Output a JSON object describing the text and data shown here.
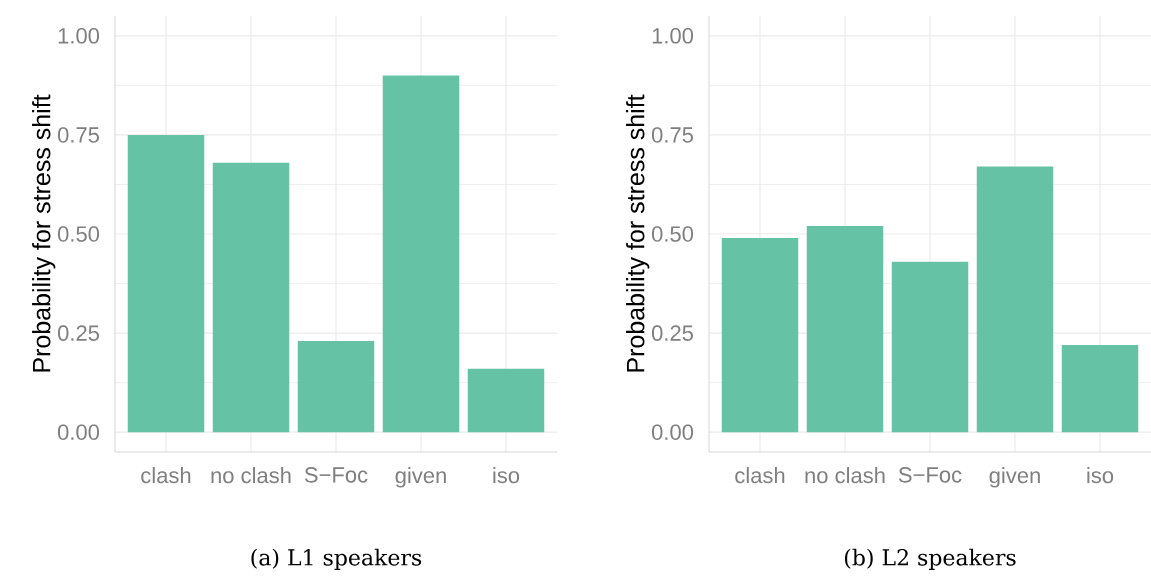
{
  "chart_data": [
    {
      "type": "bar",
      "categories": [
        "clash",
        "no clash",
        "S−Foc",
        "given",
        "iso"
      ],
      "values": [
        0.75,
        0.68,
        0.23,
        0.9,
        0.16
      ],
      "color": "#66c2a5",
      "ylabel": "Probability for stress shift",
      "ylim": [
        -0.05,
        1.05
      ],
      "yticks": [
        {
          "value": 0,
          "label": "0.00"
        },
        {
          "value": 0.25,
          "label": "0.25"
        },
        {
          "value": 0.5,
          "label": "0.50"
        },
        {
          "value": 0.75,
          "label": "0.75"
        },
        {
          "value": 1,
          "label": "1.00"
        }
      ],
      "grid": true,
      "annotations": [
        "(a) L1 speakers"
      ]
    },
    {
      "type": "bar",
      "categories": [
        "clash",
        "no clash",
        "S−Foc",
        "given",
        "iso"
      ],
      "values": [
        0.49,
        0.52,
        0.43,
        0.67,
        0.22
      ],
      "color": "#66c2a5",
      "ylabel": "Probability for stress shift",
      "ylim": [
        -0.05,
        1.05
      ],
      "yticks": [
        {
          "value": 0,
          "label": "0.00"
        },
        {
          "value": 0.25,
          "label": "0.25"
        },
        {
          "value": 0.5,
          "label": "0.50"
        },
        {
          "value": 0.75,
          "label": "0.75"
        },
        {
          "value": 1,
          "label": "1.00"
        }
      ],
      "grid": true,
      "annotations": [
        "(b) L2 speakers"
      ]
    }
  ]
}
